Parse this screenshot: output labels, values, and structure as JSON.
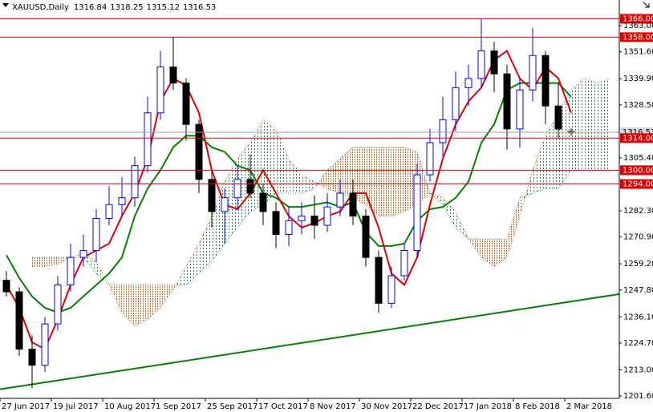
{
  "chart_data": {
    "type": "candlestick",
    "symbol": "XAUUSD,Daily",
    "categories": [
      "27 Jun 2017",
      null,
      null,
      null,
      "19 Jul 2017",
      null,
      null,
      null,
      "10 Aug 2017",
      null,
      null,
      null,
      "1 Sep 2017",
      null,
      null,
      null,
      "25 Sep 2017",
      null,
      null,
      null,
      "17 Oct 2017",
      null,
      null,
      null,
      "8 Nov 2017",
      null,
      null,
      null,
      "30 Nov 2017",
      null,
      null,
      null,
      "22 Dec 2017",
      null,
      null,
      null,
      "17 Jan 2018",
      null,
      null,
      null,
      "8 Feb 2018",
      null,
      null,
      null,
      "2 Mar 2018",
      null,
      null,
      null
    ],
    "open": [
      1252,
      1247,
      1222,
      1215,
      1233,
      1250,
      1262,
      1265,
      1279,
      1285,
      1288,
      1302,
      1325,
      1345,
      1338,
      1320,
      1296,
      1282,
      1288,
      1296,
      1290,
      1282,
      1272,
      1278,
      1280,
      1276,
      1284,
      1290,
      1280,
      1262,
      1242,
      1254,
      1265,
      1298,
      1312,
      1322,
      1336,
      1340,
      1352,
      1342,
      1318,
      1335,
      1350,
      1328,
      1316.84,
      null,
      null,
      null
    ],
    "high": [
      1256,
      1249,
      1228,
      1236,
      1254,
      1268,
      1272,
      1283,
      1293,
      1297,
      1306,
      1332,
      1352,
      1358,
      1340,
      1322,
      1300,
      1292,
      1302,
      1307,
      1294,
      1286,
      1284,
      1286,
      1289,
      1290,
      1296,
      1296,
      1283,
      1265,
      1258,
      1268,
      1303,
      1318,
      1332,
      1343,
      1346,
      1366,
      1356,
      1346,
      1340,
      1362,
      1352,
      1338,
      1318.25,
      null,
      null,
      null
    ],
    "low": [
      1245,
      1219,
      1205,
      1212,
      1230,
      1247,
      1258,
      1260,
      1276,
      1280,
      1284,
      1299,
      1322,
      1335,
      1313,
      1290,
      1275,
      1268,
      1283,
      1288,
      1276,
      1266,
      1267,
      1272,
      1270,
      1273,
      1280,
      1276,
      1258,
      1238,
      1240,
      1252,
      1262,
      1295,
      1306,
      1317,
      1328,
      1336,
      1334,
      1309,
      1310,
      1330,
      1320,
      1314,
      1315.12,
      null,
      null,
      null
    ],
    "close": [
      1247,
      1222,
      1215,
      1233,
      1250,
      1262,
      1265,
      1279,
      1285,
      1288,
      1302,
      1325,
      1345,
      1338,
      1320,
      1296,
      1282,
      1288,
      1296,
      1290,
      1282,
      1272,
      1278,
      1280,
      1276,
      1284,
      1290,
      1280,
      1262,
      1242,
      1254,
      1265,
      1298,
      1312,
      1322,
      1336,
      1340,
      1352,
      1342,
      1318,
      1335,
      1350,
      1328,
      1318,
      1316.53,
      null,
      null,
      null
    ],
    "tenkan": [
      1250,
      1240,
      1225,
      1222,
      1235,
      1250,
      1262,
      1265,
      1268,
      1280,
      1290,
      1305,
      1330,
      1340,
      1337,
      1325,
      1300,
      1285,
      1283,
      1290,
      1300,
      1290,
      1280,
      1275,
      1277,
      1280,
      1282,
      1290,
      1290,
      1275,
      1255,
      1250,
      1262,
      1285,
      1305,
      1320,
      1330,
      1336,
      1348,
      1352,
      1340,
      1335,
      1345,
      1340,
      1325,
      null,
      null,
      null
    ],
    "kijun": [
      1263,
      1253,
      1245,
      1240,
      1238,
      1240,
      1245,
      1250,
      1255,
      1262,
      1280,
      1292,
      1300,
      1310,
      1315,
      1315,
      1310,
      1308,
      1302,
      1300,
      1290,
      1288,
      1284,
      1284,
      1285,
      1286,
      1284,
      1286,
      1273,
      1267,
      1267,
      1268,
      1278,
      1283,
      1284,
      1288,
      1295,
      1312,
      1320,
      1335,
      1338,
      1338,
      1338,
      1338,
      1332,
      null,
      null,
      null
    ],
    "span_a": [
      null,
      null,
      1258,
      1258,
      1259,
      1262,
      1264,
      1260,
      1250,
      1238,
      1232,
      1235,
      1240,
      1248,
      1258,
      1268,
      1280,
      1295,
      1305,
      1312,
      1322,
      1318,
      1305,
      1298,
      1295,
      1292,
      1290,
      1288,
      1285,
      1280,
      1280,
      1282,
      1285,
      1290,
      1288,
      1282,
      1270,
      1262,
      1258,
      1262,
      1280,
      1300,
      1315,
      1325,
      1335,
      1340,
      1338,
      1340
    ],
    "span_b": [
      null,
      null,
      1262,
      1262,
      1262,
      1262,
      1262,
      1255,
      1250,
      1250,
      1250,
      1250,
      1250,
      1250,
      1250,
      1255,
      1260,
      1268,
      1275,
      1282,
      1285,
      1290,
      1290,
      1290,
      1292,
      1300,
      1305,
      1310,
      1310,
      1310,
      1310,
      1310,
      1308,
      1290,
      1285,
      1275,
      1270,
      1270,
      1270,
      1270,
      1288,
      1290,
      1292,
      1292,
      1300,
      1300,
      1300,
      1300
    ],
    "trendline": [
      1204.5,
      1246
    ],
    "levels": [
      {
        "value": 1366,
        "label": "1366.00"
      },
      {
        "value": 1358,
        "label": "1358.00"
      },
      {
        "value": 1314,
        "label": "1314.00"
      },
      {
        "value": 1300,
        "label": "1300.00"
      },
      {
        "value": 1294,
        "label": "1294.00"
      }
    ],
    "ylim": [
      1200.55,
      1374.2
    ],
    "yticks": [
      {
        "value": 1363,
        "label": "1363.00"
      },
      {
        "value": 1351.6,
        "label": "1351.60"
      },
      {
        "value": 1339.9,
        "label": "1339.90"
      },
      {
        "value": 1328.5,
        "label": "1328.50"
      },
      {
        "value": 1305.4,
        "label": "1305.40"
      },
      {
        "value": 1282.3,
        "label": "1282.30"
      },
      {
        "value": 1270.9,
        "label": "1270.90"
      },
      {
        "value": 1259.2,
        "label": "1259.20"
      },
      {
        "value": 1247.8,
        "label": "1247.80"
      },
      {
        "value": 1236.1,
        "label": "1236.10"
      },
      {
        "value": 1224.7,
        "label": "1224.70"
      },
      {
        "value": 1213,
        "label": "1213.00"
      },
      {
        "value": 1201.6,
        "label": "1201.60"
      }
    ],
    "colors": {
      "up": "#0000ff",
      "down": "#000000",
      "tenkan": "#e00000",
      "kijun": "#008000",
      "cloud_up": "#2e8b57",
      "cloud_down": "#d2691e",
      "level": "#e00000",
      "trendline": "#008000",
      "last": "#a0a0a0"
    }
  }
}
